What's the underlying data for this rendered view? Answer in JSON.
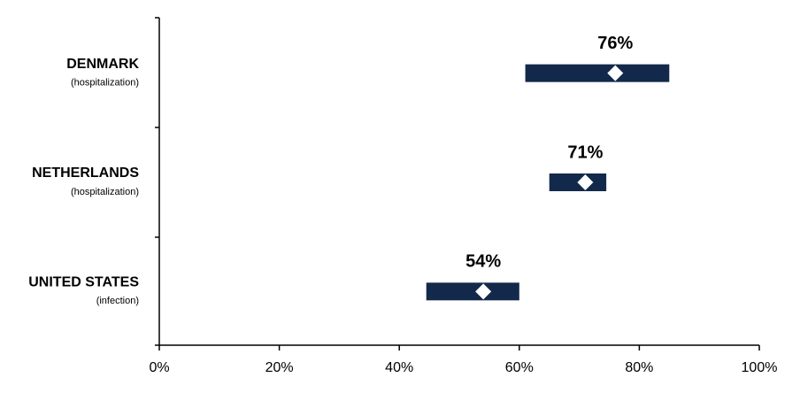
{
  "chart_data": {
    "type": "range",
    "categories": [
      "DENMARK",
      "NETHERLANDS",
      "UNITED STATES"
    ],
    "subtitles": [
      "(hospitalization)",
      "(hospitalization)",
      "(infection)"
    ],
    "values": [
      76,
      71,
      54
    ],
    "value_labels": [
      "76%",
      "71%",
      "54%"
    ],
    "low": [
      61,
      65,
      44.5
    ],
    "high": [
      85,
      74.5,
      60
    ],
    "color": "#13294b",
    "marker_color": "#ffffff",
    "xlim": [
      0,
      100
    ],
    "xticks": [
      {
        "value": 0,
        "label": "0%"
      },
      {
        "value": 20,
        "label": "20%"
      },
      {
        "value": 40,
        "label": "40%"
      },
      {
        "value": 60,
        "label": "60%"
      },
      {
        "value": 80,
        "label": "80%"
      },
      {
        "value": 100,
        "label": "100%"
      }
    ]
  }
}
